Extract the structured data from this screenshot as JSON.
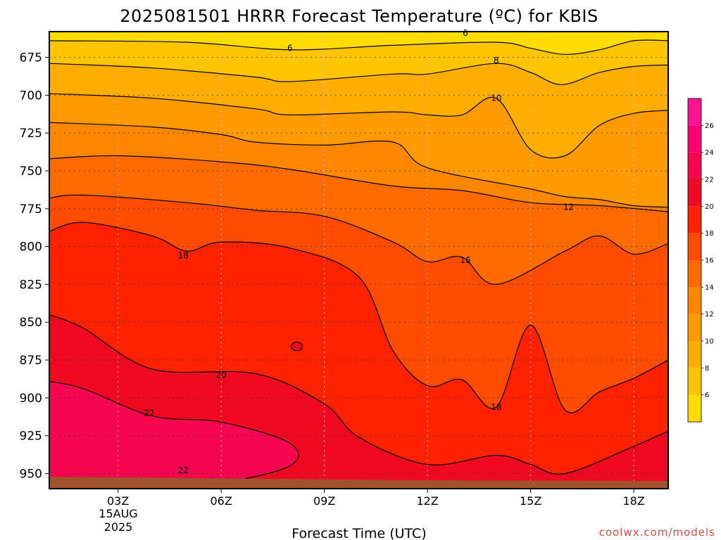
{
  "chart_data": {
    "type": "heatmap",
    "title": "2025081501 HRRR Forecast Temperature (ºC) for KBIS",
    "xlabel": "Forecast Time (UTC)",
    "ylabel": "",
    "x_range_hours": [
      1,
      19
    ],
    "y_range_hpa": [
      658,
      960
    ],
    "y_ticks": [
      "675",
      "700",
      "725",
      "750",
      "775",
      "800",
      "825",
      "850",
      "875",
      "900",
      "925",
      "950"
    ],
    "x_ticks": [
      {
        "hour": 3,
        "label": "03Z"
      },
      {
        "hour": 6,
        "label": "06Z"
      },
      {
        "hour": 9,
        "label": "09Z"
      },
      {
        "hour": 12,
        "label": "12Z"
      },
      {
        "hour": 15,
        "label": "15Z"
      },
      {
        "hour": 18,
        "label": "18Z"
      }
    ],
    "date_label": [
      "15AUG",
      "2025"
    ],
    "grid": true,
    "colorbar": {
      "levels": [
        4,
        6,
        8,
        10,
        12,
        14,
        16,
        18,
        20,
        22,
        24,
        26,
        28
      ],
      "tick_labels": [
        "6",
        "8",
        "10",
        "12",
        "14",
        "16",
        "18",
        "20",
        "22",
        "24",
        "26"
      ],
      "colors": [
        "#ffdc00",
        "#ffc400",
        "#ffad00",
        "#ff9b00",
        "#ff8600",
        "#ff6b00",
        "#ff4c00",
        "#ff2200",
        "#ef0a22",
        "#f5064f",
        "#fb0071",
        "#ff1494"
      ],
      "placement": "right"
    },
    "contours": [
      {
        "level": 6,
        "points": [
          [
            1,
            664
          ],
          [
            5,
            665
          ],
          [
            8,
            670
          ],
          [
            11,
            667
          ],
          [
            14,
            665
          ],
          [
            15,
            669
          ],
          [
            16,
            673
          ],
          [
            17,
            670
          ],
          [
            18,
            664
          ],
          [
            19,
            664
          ]
        ]
      },
      {
        "level": 8,
        "points": [
          [
            1,
            679
          ],
          [
            4,
            682
          ],
          [
            7,
            688
          ],
          [
            8,
            691
          ],
          [
            11,
            686
          ],
          [
            12,
            686
          ],
          [
            14,
            679
          ],
          [
            15,
            685
          ],
          [
            15.9,
            693
          ],
          [
            17,
            685
          ],
          [
            18,
            681
          ],
          [
            19,
            680
          ]
        ]
      },
      {
        "level": 10,
        "points": [
          [
            1,
            699
          ],
          [
            4,
            702
          ],
          [
            7,
            709
          ],
          [
            8,
            713
          ],
          [
            11,
            711
          ],
          [
            12,
            713
          ],
          [
            13,
            713
          ],
          [
            14,
            702
          ],
          [
            15,
            736
          ],
          [
            16,
            740
          ],
          [
            17,
            720
          ],
          [
            18,
            712
          ],
          [
            19,
            710
          ]
        ]
      },
      {
        "level": 12,
        "points": [
          [
            1,
            718
          ],
          [
            4,
            721
          ],
          [
            6,
            726
          ],
          [
            7,
            731
          ],
          [
            9,
            733
          ],
          [
            11,
            731
          ],
          [
            12,
            748
          ],
          [
            15,
            762
          ],
          [
            16,
            767
          ],
          [
            17,
            769
          ],
          [
            18,
            773
          ],
          [
            19,
            774
          ]
        ]
      },
      {
        "level": 14,
        "points": [
          [
            1,
            742
          ],
          [
            3,
            740
          ],
          [
            6,
            744
          ],
          [
            8,
            749
          ],
          [
            11,
            760
          ],
          [
            13,
            763
          ],
          [
            15,
            771
          ],
          [
            17,
            773
          ],
          [
            19,
            777
          ]
        ]
      },
      {
        "level": 16,
        "points": [
          [
            1,
            768
          ],
          [
            2,
            766
          ],
          [
            5,
            771
          ],
          [
            7,
            776
          ],
          [
            9,
            780
          ],
          [
            11,
            797
          ],
          [
            12,
            810
          ],
          [
            13,
            807
          ],
          [
            14,
            825
          ],
          [
            16,
            803
          ],
          [
            17,
            793
          ],
          [
            18,
            805
          ],
          [
            19,
            798
          ]
        ]
      },
      {
        "level": 18,
        "points": [
          [
            1,
            790
          ],
          [
            2,
            784
          ],
          [
            4,
            793
          ],
          [
            5,
            803
          ],
          [
            6,
            797
          ],
          [
            8,
            801
          ],
          [
            10,
            820
          ],
          [
            11,
            869
          ],
          [
            12,
            892
          ],
          [
            13,
            888
          ],
          [
            14,
            906
          ],
          [
            15,
            852
          ],
          [
            16,
            908
          ],
          [
            17,
            896
          ],
          [
            18,
            887
          ],
          [
            19,
            875
          ]
        ]
      },
      {
        "level": 20,
        "points": [
          [
            1,
            845
          ],
          [
            2,
            854
          ],
          [
            4,
            881
          ],
          [
            7,
            884
          ],
          [
            9,
            904
          ],
          [
            10,
            926
          ],
          [
            12,
            944
          ],
          [
            14,
            938
          ],
          [
            15,
            944
          ],
          [
            16,
            950
          ],
          [
            18,
            932
          ],
          [
            19,
            922
          ]
        ]
      },
      {
        "level": 22,
        "points": [
          [
            1,
            889
          ],
          [
            2,
            894
          ],
          [
            4,
            912
          ],
          [
            6,
            916
          ],
          [
            8,
            930
          ],
          [
            8,
            945
          ],
          [
            6,
            957
          ]
        ]
      }
    ],
    "contour_labels": [
      {
        "text": "6",
        "hour": 8.0,
        "hpa": 669
      },
      {
        "text": "6",
        "hour": 13.1,
        "hpa": 659
      },
      {
        "text": "8",
        "hour": 14.0,
        "hpa": 677
      },
      {
        "text": "10",
        "hour": 14.0,
        "hpa": 702
      },
      {
        "text": "12",
        "hour": 16.1,
        "hpa": 774
      },
      {
        "text": "16",
        "hour": 13.1,
        "hpa": 809
      },
      {
        "text": "18",
        "hour": 4.9,
        "hpa": 806
      },
      {
        "text": "18",
        "hour": 14.0,
        "hpa": 906
      },
      {
        "text": "20",
        "hour": 6.0,
        "hpa": 885
      },
      {
        "text": "22",
        "hour": 3.9,
        "hpa": 910
      },
      {
        "text": "22",
        "hour": 4.9,
        "hpa": 948
      }
    ],
    "terrain_color": "#a0522d",
    "terrain_hpa": 954
  },
  "credit": "coolwx.com/models"
}
